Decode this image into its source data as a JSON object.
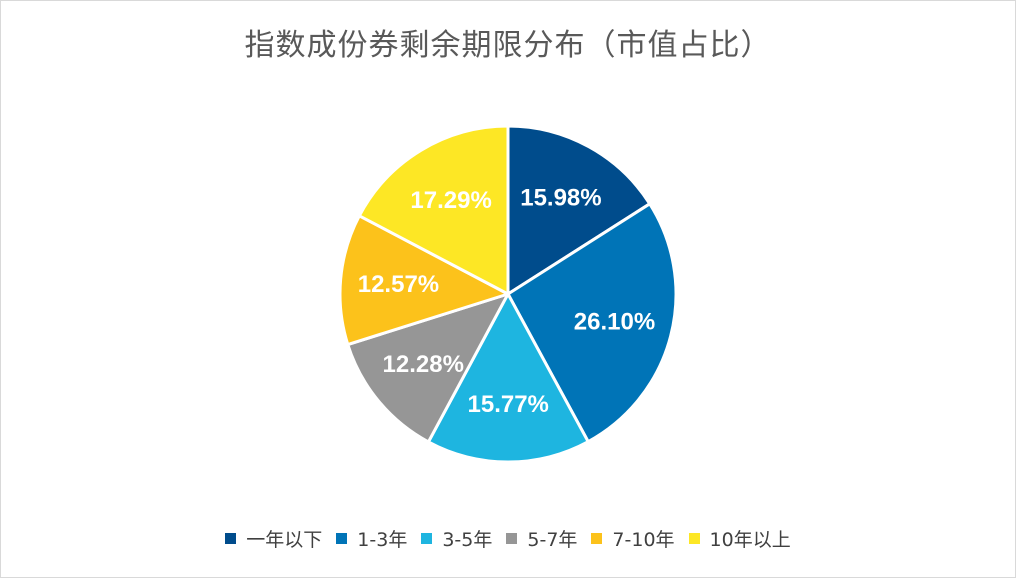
{
  "chart_data": {
    "type": "pie",
    "title": "指数成份券剩余期限分布（市值占比）",
    "categories": [
      "一年以下",
      "1-3年",
      "3-5年",
      "5-7年",
      "7-10年",
      "10年以上"
    ],
    "values": [
      15.98,
      26.1,
      15.77,
      12.28,
      12.57,
      17.29
    ],
    "labels": [
      "15.98%",
      "26.10%",
      "15.77%",
      "12.28%",
      "12.57%",
      "17.29%"
    ],
    "colors": [
      "#004c8c",
      "#0074b7",
      "#1eb5e0",
      "#969696",
      "#fcc21b",
      "#fde725"
    ],
    "legend_position": "bottom"
  }
}
